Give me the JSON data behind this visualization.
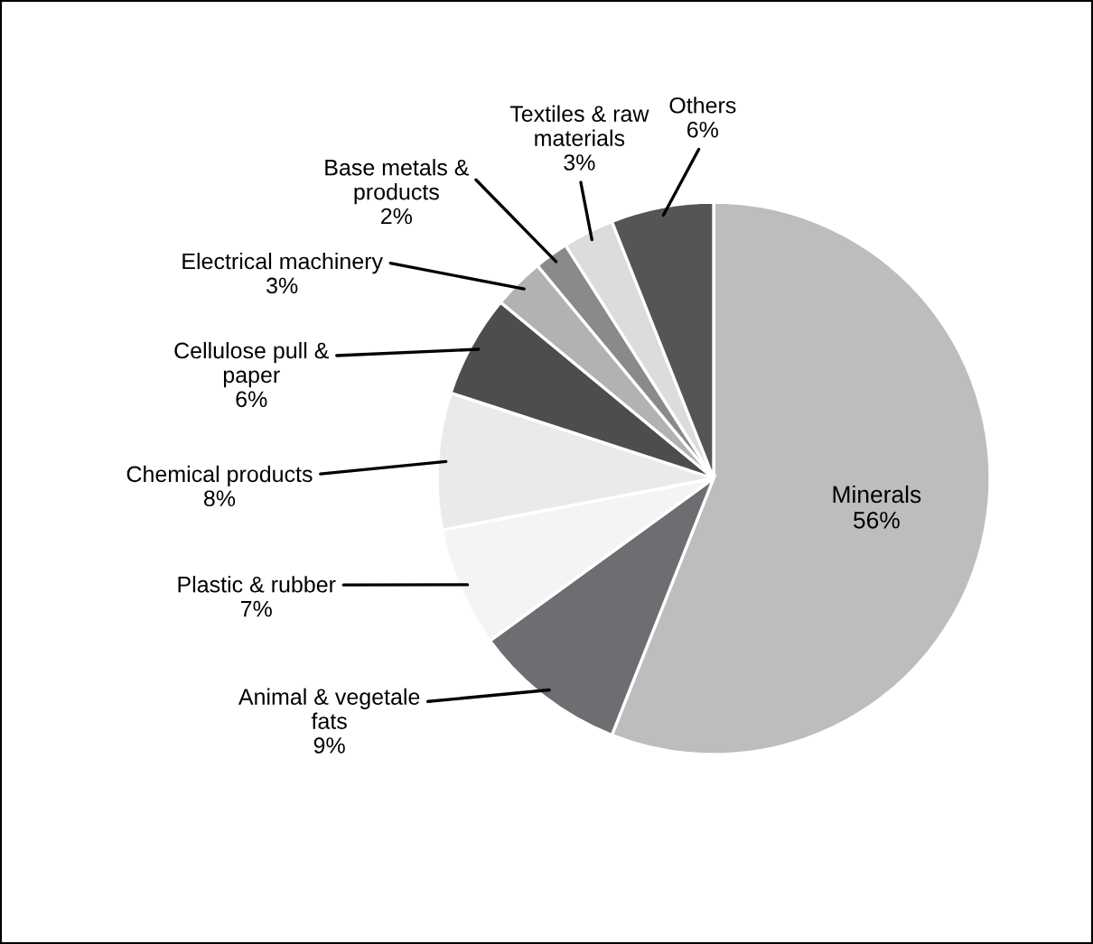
{
  "chart_data": {
    "type": "pie",
    "categories": [
      "Minerals",
      "Animal & vegetale\nfats",
      "Plastic & rubber",
      "Chemical products",
      "Cellulose pull &\npaper",
      "Electrical machinery",
      "Base metals &\nproducts",
      "Textiles & raw\nmaterials",
      "Others"
    ],
    "values": [
      56,
      9,
      7,
      8,
      6,
      3,
      2,
      3,
      6
    ],
    "colors": [
      "#bdbdbd",
      "#6d6e71",
      "#f4f4f4",
      "#eaeaea",
      "#4d4d4f",
      "#b2b2b2",
      "#8a8a8a",
      "#dcdcdc",
      "#555557"
    ],
    "value_labels": [
      "56%",
      "9%",
      "7%",
      "8%",
      "6%",
      "3%",
      "2%",
      "3%",
      "6%"
    ]
  }
}
